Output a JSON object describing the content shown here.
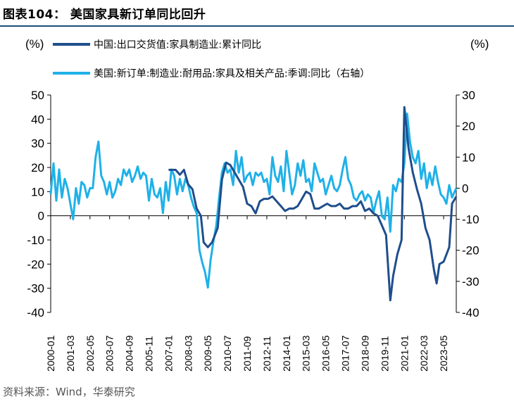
{
  "title": "图表104：  美国家具新订单同比回升",
  "source": "资料来源：Wind，华泰研究",
  "chart_data": {
    "type": "line",
    "left_unit": "(%)",
    "right_unit": "(%)",
    "y_left": {
      "ticks": [
        50,
        40,
        30,
        20,
        10,
        0,
        -10,
        -20,
        -30,
        -40
      ],
      "lim": [
        -40,
        50
      ]
    },
    "y_right": {
      "ticks": [
        30,
        20,
        10,
        0,
        -10,
        -20,
        -30,
        -40
      ],
      "lim": [
        -40,
        30
      ]
    },
    "x_ticks": [
      "2000-01",
      "2001-03",
      "2002-05",
      "2003-07",
      "2004-09",
      "2005-11",
      "2007-01",
      "2008-03",
      "2009-05",
      "2010-07",
      "2011-09",
      "2012-11",
      "2014-01",
      "2015-03",
      "2016-05",
      "2017-07",
      "2018-09",
      "2019-11",
      "2021-01",
      "2022-03",
      "2023-05"
    ],
    "series": [
      {
        "name": "中国:出口交货值:家具制造业:累计同比",
        "axis": "left",
        "color": "#1f4e8c",
        "points": [
          [
            "2007-01",
            19
          ],
          [
            "2007-06",
            19
          ],
          [
            "2007-09",
            17
          ],
          [
            "2007-12",
            19
          ],
          [
            "2008-03",
            13
          ],
          [
            "2008-06",
            11
          ],
          [
            "2008-09",
            3
          ],
          [
            "2008-12",
            0
          ],
          [
            "2009-02",
            -11
          ],
          [
            "2009-05",
            -13
          ],
          [
            "2009-08",
            -11
          ],
          [
            "2009-12",
            -5
          ],
          [
            "2010-03",
            15
          ],
          [
            "2010-06",
            22
          ],
          [
            "2010-09",
            21
          ],
          [
            "2010-12",
            18
          ],
          [
            "2011-03",
            15
          ],
          [
            "2011-06",
            12
          ],
          [
            "2011-09",
            5
          ],
          [
            "2011-12",
            4
          ],
          [
            "2012-03",
            1
          ],
          [
            "2012-06",
            6
          ],
          [
            "2012-09",
            7
          ],
          [
            "2012-12",
            7
          ],
          [
            "2013-03",
            8
          ],
          [
            "2013-06",
            6
          ],
          [
            "2013-09",
            4
          ],
          [
            "2013-12",
            2
          ],
          [
            "2014-03",
            3
          ],
          [
            "2014-06",
            3
          ],
          [
            "2014-09",
            4
          ],
          [
            "2014-12",
            7
          ],
          [
            "2015-03",
            10
          ],
          [
            "2015-06",
            9
          ],
          [
            "2015-09",
            3
          ],
          [
            "2015-12",
            3
          ],
          [
            "2016-03",
            4
          ],
          [
            "2016-06",
            5
          ],
          [
            "2016-09",
            4
          ],
          [
            "2016-12",
            4
          ],
          [
            "2017-03",
            5
          ],
          [
            "2017-06",
            3
          ],
          [
            "2017-09",
            3
          ],
          [
            "2017-12",
            4
          ],
          [
            "2018-03",
            4
          ],
          [
            "2018-06",
            6
          ],
          [
            "2018-09",
            2
          ],
          [
            "2018-12",
            3
          ],
          [
            "2019-03",
            1
          ],
          [
            "2019-06",
            0
          ],
          [
            "2019-09",
            -4
          ],
          [
            "2019-12",
            -8
          ],
          [
            "2020-03",
            -35
          ],
          [
            "2020-05",
            -25
          ],
          [
            "2020-08",
            -16
          ],
          [
            "2020-11",
            -10
          ],
          [
            "2021-01",
            45
          ],
          [
            "2021-04",
            28
          ],
          [
            "2021-07",
            18
          ],
          [
            "2021-10",
            11
          ],
          [
            "2022-01",
            5
          ],
          [
            "2022-04",
            -5
          ],
          [
            "2022-07",
            -10
          ],
          [
            "2022-10",
            -22
          ],
          [
            "2022-12",
            -28
          ],
          [
            "2023-02",
            -20
          ],
          [
            "2023-05",
            -19
          ],
          [
            "2023-09",
            -13
          ],
          [
            "2023-11",
            5
          ],
          [
            "2024-02",
            8
          ]
        ]
      },
      {
        "name": "美国:新订单:制造业:耐用品:家具及相关产品:季调:同比（右轴）",
        "axis": "right",
        "color": "#1fb1e8",
        "points": [
          [
            "2000-01",
            -2
          ],
          [
            "2000-03",
            8
          ],
          [
            "2000-05",
            -4
          ],
          [
            "2000-07",
            6
          ],
          [
            "2000-09",
            -3
          ],
          [
            "2000-11",
            3
          ],
          [
            "2001-01",
            0
          ],
          [
            "2001-03",
            -5
          ],
          [
            "2001-05",
            -10
          ],
          [
            "2001-07",
            0
          ],
          [
            "2001-09",
            -5
          ],
          [
            "2001-11",
            2
          ],
          [
            "2002-01",
            1
          ],
          [
            "2002-03",
            -3
          ],
          [
            "2002-05",
            0
          ],
          [
            "2002-07",
            0
          ],
          [
            "2002-09",
            10
          ],
          [
            "2002-11",
            15
          ],
          [
            "2003-01",
            4
          ],
          [
            "2003-03",
            2
          ],
          [
            "2003-05",
            -2
          ],
          [
            "2003-07",
            2
          ],
          [
            "2003-09",
            -3
          ],
          [
            "2003-11",
            -1
          ],
          [
            "2004-01",
            3
          ],
          [
            "2004-03",
            1
          ],
          [
            "2004-05",
            6
          ],
          [
            "2004-07",
            4
          ],
          [
            "2004-09",
            6
          ],
          [
            "2004-11",
            2
          ],
          [
            "2005-01",
            4
          ],
          [
            "2005-03",
            7
          ],
          [
            "2005-05",
            3
          ],
          [
            "2005-07",
            5
          ],
          [
            "2005-09",
            4
          ],
          [
            "2005-11",
            -4
          ],
          [
            "2006-01",
            3
          ],
          [
            "2006-03",
            -2
          ],
          [
            "2006-05",
            -3
          ],
          [
            "2006-07",
            0
          ],
          [
            "2006-09",
            -8
          ],
          [
            "2006-11",
            2
          ],
          [
            "2007-01",
            -4
          ],
          [
            "2007-03",
            6
          ],
          [
            "2007-05",
            4
          ],
          [
            "2007-07",
            -2
          ],
          [
            "2007-09",
            3
          ],
          [
            "2007-11",
            -1
          ],
          [
            "2008-01",
            3
          ],
          [
            "2008-03",
            1
          ],
          [
            "2008-05",
            -3
          ],
          [
            "2008-07",
            -6
          ],
          [
            "2008-09",
            -8
          ],
          [
            "2008-11",
            -20
          ],
          [
            "2009-01",
            -24
          ],
          [
            "2009-03",
            -27
          ],
          [
            "2009-05",
            -32
          ],
          [
            "2009-07",
            -23
          ],
          [
            "2009-09",
            -17
          ],
          [
            "2009-11",
            -12
          ],
          [
            "2010-01",
            -3
          ],
          [
            "2010-03",
            5
          ],
          [
            "2010-05",
            8
          ],
          [
            "2010-07",
            5
          ],
          [
            "2010-09",
            6
          ],
          [
            "2010-11",
            1
          ],
          [
            "2011-01",
            12
          ],
          [
            "2011-03",
            5
          ],
          [
            "2011-05",
            10
          ],
          [
            "2011-07",
            2
          ],
          [
            "2011-09",
            4
          ],
          [
            "2011-11",
            5
          ],
          [
            "2012-01",
            1
          ],
          [
            "2012-03",
            5
          ],
          [
            "2012-05",
            4
          ],
          [
            "2012-07",
            5
          ],
          [
            "2012-09",
            2
          ],
          [
            "2012-11",
            3
          ],
          [
            "2013-01",
            -2
          ],
          [
            "2013-03",
            10
          ],
          [
            "2013-05",
            4
          ],
          [
            "2013-07",
            2
          ],
          [
            "2013-09",
            7
          ],
          [
            "2013-11",
            -1
          ],
          [
            "2014-01",
            12
          ],
          [
            "2014-03",
            5
          ],
          [
            "2014-05",
            -2
          ],
          [
            "2014-07",
            1
          ],
          [
            "2014-09",
            8
          ],
          [
            "2014-11",
            4
          ],
          [
            "2015-01",
            9
          ],
          [
            "2015-03",
            2
          ],
          [
            "2015-05",
            3
          ],
          [
            "2015-07",
            -1
          ],
          [
            "2015-09",
            8
          ],
          [
            "2015-11",
            5
          ],
          [
            "2016-01",
            2
          ],
          [
            "2016-03",
            3
          ],
          [
            "2016-05",
            -2
          ],
          [
            "2016-07",
            1
          ],
          [
            "2016-09",
            4
          ],
          [
            "2016-11",
            0
          ],
          [
            "2017-01",
            -1
          ],
          [
            "2017-03",
            1
          ],
          [
            "2017-05",
            6
          ],
          [
            "2017-07",
            10
          ],
          [
            "2017-09",
            3
          ],
          [
            "2017-11",
            1
          ],
          [
            "2018-01",
            -3
          ],
          [
            "2018-03",
            -4
          ],
          [
            "2018-05",
            -2
          ],
          [
            "2018-07",
            -1
          ],
          [
            "2018-09",
            -4
          ],
          [
            "2018-11",
            -2
          ],
          [
            "2019-01",
            -3
          ],
          [
            "2019-03",
            -8
          ],
          [
            "2019-05",
            -4
          ],
          [
            "2019-07",
            -1
          ],
          [
            "2019-09",
            -9
          ],
          [
            "2019-11",
            -10
          ],
          [
            "2020-01",
            -3
          ],
          [
            "2020-03",
            -14
          ],
          [
            "2020-05",
            1
          ],
          [
            "2020-07",
            -1
          ],
          [
            "2020-09",
            3
          ],
          [
            "2020-11",
            2
          ],
          [
            "2021-01",
            8
          ],
          [
            "2021-03",
            24
          ],
          [
            "2021-05",
            15
          ],
          [
            "2021-07",
            10
          ],
          [
            "2021-09",
            8
          ],
          [
            "2021-11",
            12
          ],
          [
            "2022-01",
            3
          ],
          [
            "2022-03",
            8
          ],
          [
            "2022-05",
            0
          ],
          [
            "2022-07",
            5
          ],
          [
            "2022-09",
            1
          ],
          [
            "2022-11",
            7
          ],
          [
            "2023-01",
            2
          ],
          [
            "2023-03",
            -2
          ],
          [
            "2023-05",
            -3
          ],
          [
            "2023-07",
            -5
          ],
          [
            "2023-09",
            1
          ],
          [
            "2023-11",
            -3
          ],
          [
            "2024-01",
            -1
          ],
          [
            "2024-02",
            0
          ]
        ]
      }
    ]
  }
}
